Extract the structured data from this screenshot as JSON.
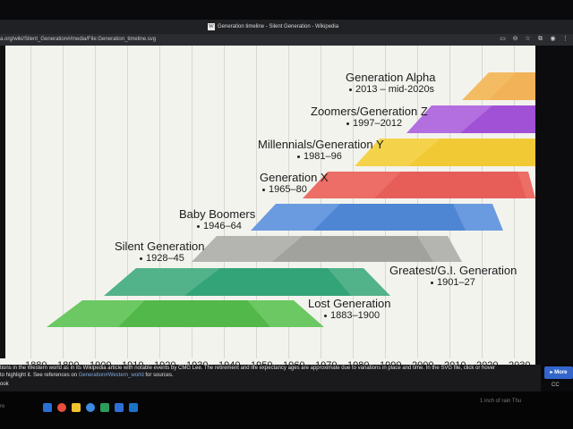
{
  "window": {
    "title": "Generation timeline - Silent Generation - Wikipedia",
    "app_icon": "W"
  },
  "urlbar": {
    "url": "a.org/wiki/Silent_Generation#/media/File:Generation_timeline.svg"
  },
  "timeline": {
    "axis_ticks": [
      "1880",
      "1890",
      "1900",
      "1910",
      "1920",
      "1930",
      "1940",
      "1950",
      "1960",
      "1970",
      "1980",
      "1990",
      "2000",
      "2010",
      "2020",
      "2030"
    ],
    "generations": [
      {
        "name": "Generation Alpha",
        "years": "2013 – mid-2020s",
        "color": "#f2b65c"
      },
      {
        "name": "Zoomers/Generation Z",
        "years": "1997–2012",
        "color": "#a55ad8"
      },
      {
        "name": "Millennials/Generation Y",
        "years": "1981–96",
        "color": "#f2cf3a"
      },
      {
        "name": "Generation X",
        "years": "1965–80",
        "color": "#e8605c"
      },
      {
        "name": "Baby Boomers",
        "years": "1946–64",
        "color": "#4d86d4"
      },
      {
        "name": "Silent Generation",
        "years": "1928–45",
        "color": "#a8a8a8"
      },
      {
        "name": "Greatest/G.I. Generation",
        "years": "1901–27",
        "color": "#2ea27a"
      },
      {
        "name": "Lost Generation",
        "years": "1883–1900",
        "color": "#4cbb48"
      }
    ]
  },
  "caption": {
    "line1": "tions in the Western world as in its Wikipedia article with notable events by CMG Lee. The retirement and life expectancy ages are approximate due to variations in place and time. In the SVG file, click or hover",
    "line2_pre": "to highlight it. See references on ",
    "line2_link": "Generation#Western_world",
    "line2_post": " for sources.",
    "line3": "ook",
    "more_button": "More",
    "corner_text": "CC"
  },
  "taskbar": {
    "status_text": "1 inch of rain Thu",
    "left_text": "re"
  }
}
